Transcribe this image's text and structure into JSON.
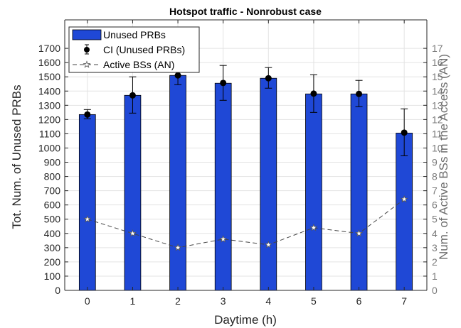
{
  "chart_data": {
    "type": "bar",
    "title": "Hotspot traffic - Nonrobust case",
    "xlabel": "Daytime (h)",
    "ylabel": "Tot. Num. of Unused PRBs",
    "y2label": "Num. of Active BSs in the Access (AN)",
    "categories": [
      "0",
      "1",
      "2",
      "3",
      "4",
      "5",
      "6",
      "7"
    ],
    "ylim": [
      0,
      1900
    ],
    "y2lim": [
      0,
      19
    ],
    "yticks": [
      0,
      100,
      200,
      300,
      400,
      500,
      600,
      700,
      800,
      900,
      1000,
      1100,
      1200,
      1300,
      1400,
      1500,
      1600,
      1700
    ],
    "y2ticks": [
      0,
      1,
      2,
      3,
      4,
      5,
      6,
      7,
      8,
      9,
      10,
      11,
      12,
      13,
      14,
      15,
      16,
      17
    ],
    "grid": true,
    "legend_position": "top-left",
    "series": [
      {
        "name": "Unused PRBs",
        "kind": "bar",
        "axis": "left",
        "color": "#1f48d6",
        "values": [
          1235,
          1370,
          1510,
          1455,
          1490,
          1380,
          1380,
          1105
        ]
      },
      {
        "name": "CI (Unused PRBs)",
        "kind": "errorbar",
        "axis": "left",
        "color": "#000000",
        "values": [
          1235,
          1370,
          1510,
          1457,
          1490,
          1382,
          1380,
          1108
        ],
        "lower": [
          1205,
          1245,
          1445,
          1335,
          1420,
          1250,
          1290,
          945
        ],
        "upper": [
          1270,
          1500,
          1580,
          1580,
          1565,
          1515,
          1475,
          1275
        ]
      },
      {
        "name": "Active BSs (AN)",
        "kind": "line",
        "axis": "right",
        "color": "#444444",
        "marker": "star",
        "values": [
          5.0,
          4.0,
          3.0,
          3.6,
          3.2,
          4.4,
          4.0,
          6.4
        ]
      }
    ]
  }
}
